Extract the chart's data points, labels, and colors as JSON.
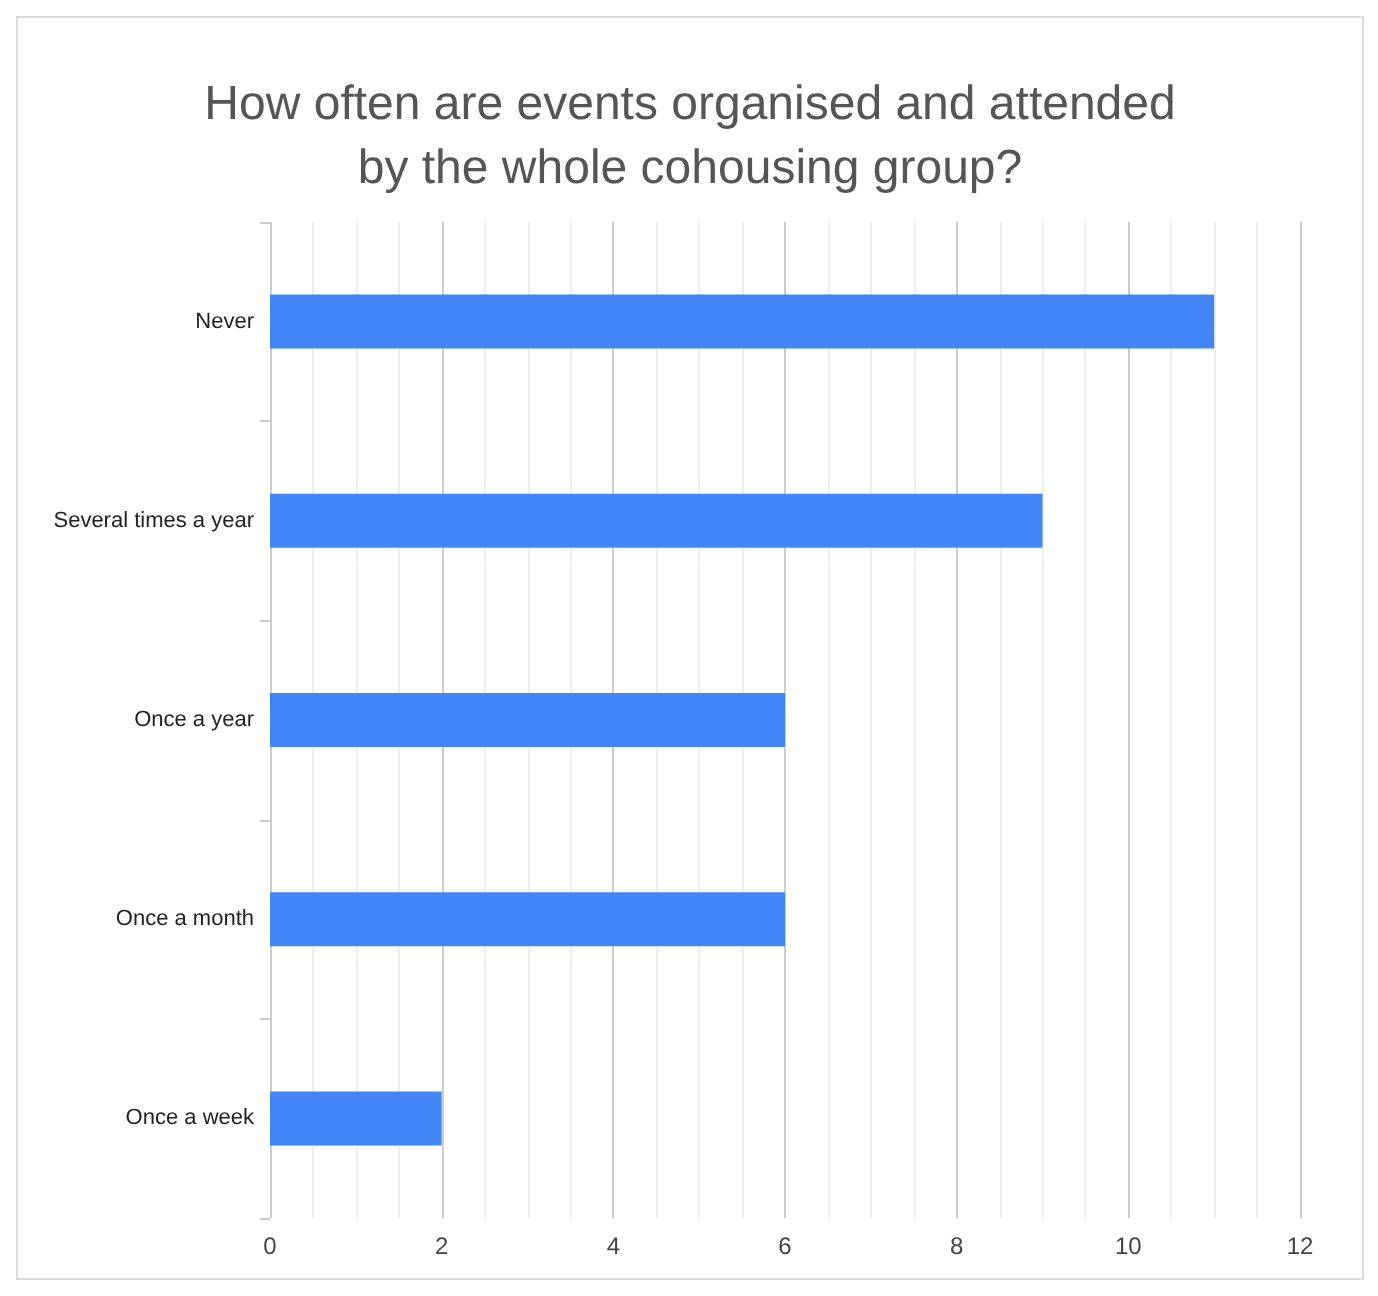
{
  "chart_data": {
    "type": "bar",
    "orientation": "horizontal",
    "title": "How often are events organised and attended\nby the whole cohousing group?",
    "categories": [
      "Never",
      "Several times a year",
      "Once a year",
      "Once a month",
      "Once a week"
    ],
    "values": [
      11,
      9,
      6,
      6,
      2
    ],
    "color": "#4285f4",
    "xlim": [
      0,
      12
    ],
    "xticks": [
      0,
      2,
      4,
      6,
      8,
      10,
      12
    ],
    "grid": "x"
  }
}
